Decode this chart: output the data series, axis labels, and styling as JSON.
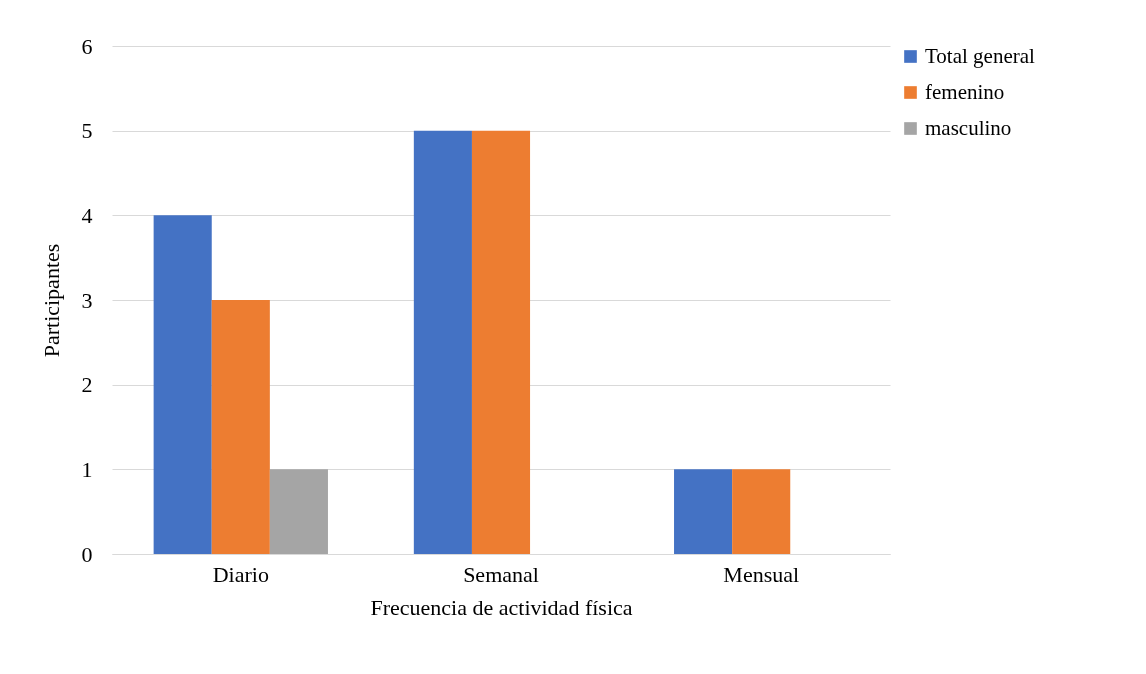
{
  "chart_data": {
    "type": "bar",
    "xlabel": "Frecuencia de actividad física",
    "ylabel": "Participantes",
    "categories": [
      "Diario",
      "Semanal",
      "Mensual"
    ],
    "series": [
      {
        "name": "Total general",
        "color": "#4472c4",
        "values": [
          4,
          5,
          1
        ]
      },
      {
        "name": "femenino",
        "color": "#ed7d31",
        "values": [
          3,
          5,
          1
        ]
      },
      {
        "name": "masculino",
        "color": "#a5a5a5",
        "values": [
          1,
          null,
          null
        ]
      }
    ],
    "ylim": [
      0,
      6
    ],
    "yticks": [
      0,
      1,
      2,
      3,
      4,
      5,
      6
    ],
    "grid": "y",
    "legend": "right"
  }
}
